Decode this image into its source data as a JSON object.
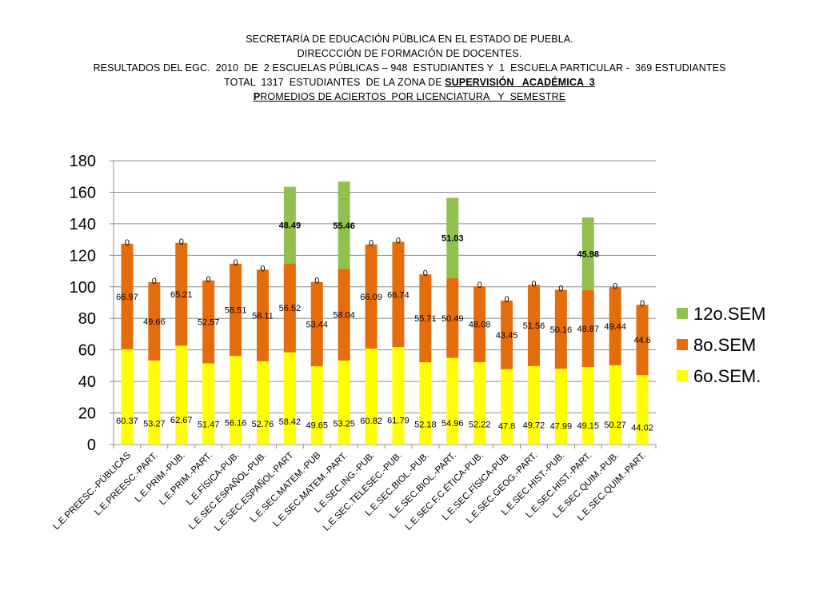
{
  "header": {
    "line1": "SECRETARÍA DE EDUCACIÓN PÚBLICA EN EL ESTADO DE PUEBLA.",
    "line2": "DIRECCCIÓN DE FORMACIÓN DE DOCENTES.",
    "line3": "RESULTADOS DEL EGC.  2010  DE  2 ESCUELAS PÚBLICAS – 948  ESTUDIANTES Y  1  ESCUELA PARTICULAR -  369 ESTUDIANTES",
    "line4_pre": "TOTAL  1317  ESTUDIANTES  DE LA ZONA DE ",
    "line4_emph": "SUPERVISIÓN   ACADÉMICA  3",
    "line5_first": "P",
    "line5_rest": "ROMEDIOS DE ACIERTOS  POR LICENCIATURA   Y  SEMESTRE"
  },
  "chart_data": {
    "type": "bar",
    "stacked": true,
    "ylim": [
      0,
      180
    ],
    "yticks": [
      0,
      20,
      40,
      60,
      80,
      100,
      120,
      140,
      160,
      180
    ],
    "grid": true,
    "legend_position": "right",
    "categories": [
      "L.E.PREESC.-PÚBLICAS",
      "L.E.PREESC.-PART.",
      "L.E.PRIM.-PUB.",
      "L.E.PRIM.-PART.",
      "L.E.FÍSICA-PUB.",
      "L.E.SEC.ESPAÑOL-PUB.",
      "L.E.SEC.ESPAÑOL-PART",
      "L.E.SEC.MATEM.-PUB",
      "L.E.SEC.MATEM.-PART.",
      "L.E.SEC.ING.-PUB.",
      "L.E.SEC.TELESEC.-PUB.",
      "L.E.SEC.BIOL.-PUB.",
      "L.E.SEC.BIOL.-PART.",
      "L.E.SEC.F.C.ÉTICA-PUB.",
      "L.E.SEC.FÍSICA-PUB.",
      "L.E.SEC.GEOG.-PART.",
      "L.E.SEC.HIST.-PUB.",
      "L.E.SEC.HIST.-PART.",
      "L.E.SEC.QUIM.-PUB.",
      "L.E.SEC.QUIM.-PART."
    ],
    "series": [
      {
        "name": "6o.SEM.",
        "color": "#FFFF00",
        "values": [
          60.37,
          53.27,
          62.67,
          51.47,
          56.16,
          52.76,
          58.42,
          49.65,
          53.25,
          60.82,
          61.79,
          52.18,
          54.96,
          52.22,
          47.8,
          49.72,
          47.99,
          49.15,
          50.27,
          44.02
        ],
        "labels": [
          "60.37",
          "53.27",
          "62.67",
          "51.47",
          "56.16",
          "52.76",
          "58.42",
          "49.65",
          "53.25",
          "60.82",
          "61.79",
          "52.18",
          "54.96",
          "52.22",
          "47.8",
          "49.72",
          "47.99",
          "49.15",
          "50.27",
          "44.02"
        ]
      },
      {
        "name": "8o.SEM",
        "color": "#E46C0A",
        "values": [
          66.97,
          49.66,
          65.21,
          52.57,
          58.51,
          58.11,
          56.52,
          53.44,
          58.04,
          66.09,
          66.74,
          55.71,
          50.49,
          48.08,
          43.45,
          51.56,
          50.16,
          48.87,
          49.44,
          44.6
        ],
        "labels": [
          "66.97",
          "49.66",
          "65.21",
          "52.57",
          "58.51",
          "58.11",
          "56.52",
          "53.44",
          "58.04",
          "66.09",
          "66.74",
          "55.71",
          "50.49",
          "48.08",
          "43.45",
          "51.56",
          "50.16",
          "48.87",
          "49.44",
          "44.6"
        ]
      },
      {
        "name": "12o.SEM",
        "color": "#92C04F",
        "values": [
          0,
          0,
          0,
          0,
          0,
          0,
          48.49,
          0,
          55.46,
          0,
          0,
          0,
          51.03,
          0,
          0,
          0,
          0,
          45.98,
          0,
          0
        ],
        "labels": [
          "0",
          "0",
          "0",
          "0",
          "0",
          "0",
          "48.49",
          "0",
          "55.46",
          "0",
          "0",
          "0",
          "51.03",
          "0",
          "0",
          "0",
          "0",
          "45.98",
          "0",
          "0"
        ]
      }
    ]
  }
}
